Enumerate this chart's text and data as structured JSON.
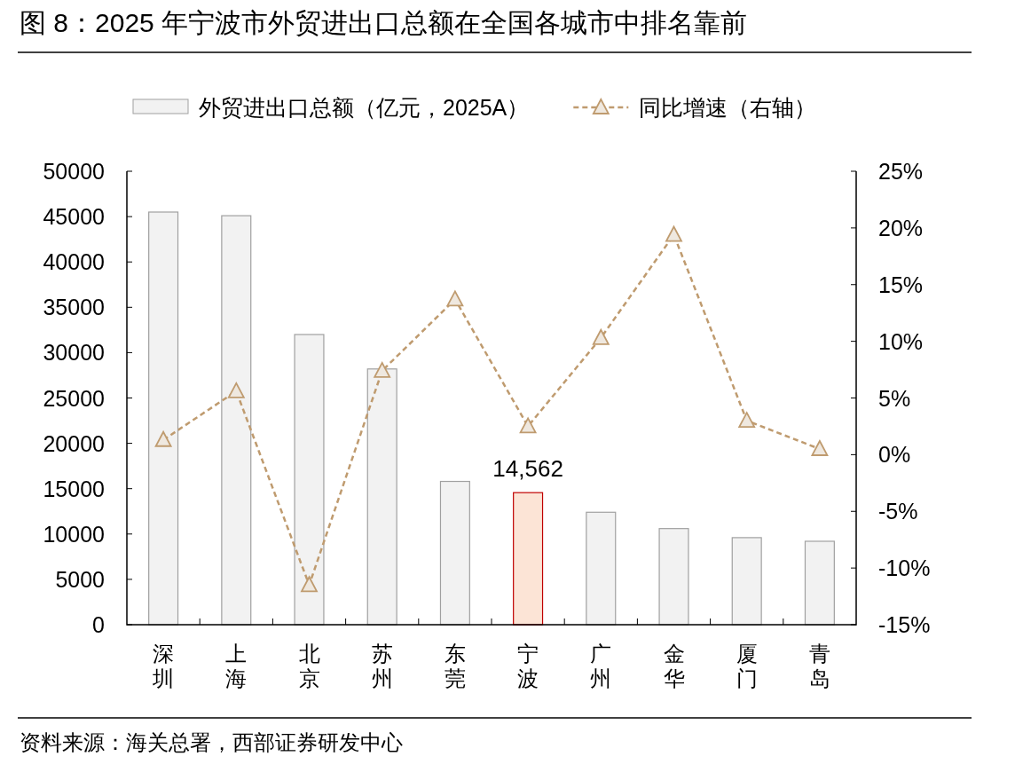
{
  "chart_data": {
    "type": "bar",
    "title": "图 8：2025 年宁波市外贸进出口总额在全国各城市中排名靠前",
    "categories": [
      "深圳",
      "上海",
      "北京",
      "苏州",
      "东莞",
      "宁波",
      "广州",
      "金华",
      "厦门",
      "青岛"
    ],
    "series": [
      {
        "name": "外贸进出口总额（亿元，2025A）",
        "color": "#f2f2f2",
        "colors": [
          "#f2f2f2",
          "#f2f2f2",
          "#f2f2f2",
          "#f2f2f2",
          "#f2f2f2",
          "#fce4d6",
          "#f2f2f2",
          "#f2f2f2",
          "#f2f2f2",
          "#f2f2f2"
        ],
        "values": [
          45500,
          45100,
          32000,
          28200,
          15800,
          14562,
          12400,
          10600,
          9600,
          9200
        ],
        "value_labels": [
          null,
          null,
          null,
          null,
          null,
          "14,562",
          null,
          null,
          null,
          null
        ]
      },
      {
        "name": "同比增速（右轴）",
        "type": "line",
        "axis": "y2",
        "color": "#bf9b6f",
        "marker": "triangle",
        "line_style": "dashed",
        "values": [
          1.3,
          5.6,
          -11.5,
          7.4,
          13.7,
          2.5,
          10.3,
          19.4,
          3.0,
          0.5
        ]
      }
    ],
    "ylim": [
      0,
      50000
    ],
    "yticks": [
      0,
      5000,
      10000,
      15000,
      20000,
      25000,
      30000,
      35000,
      40000,
      45000,
      50000
    ],
    "y2lim": [
      -15,
      25
    ],
    "y2ticks": [
      {
        "value": -15,
        "label": "-15%"
      },
      {
        "value": -10,
        "label": "-10%"
      },
      {
        "value": -5,
        "label": "-5%"
      },
      {
        "value": 0,
        "label": "0%"
      },
      {
        "value": 5,
        "label": "5%"
      },
      {
        "value": 10,
        "label": "10%"
      },
      {
        "value": 15,
        "label": "15%"
      },
      {
        "value": 20,
        "label": "20%"
      },
      {
        "value": 25,
        "label": "25%"
      }
    ],
    "grid": false,
    "legend": "top",
    "annotations": [
      "资料来源：海关总署，西部证券研发中心"
    ]
  }
}
